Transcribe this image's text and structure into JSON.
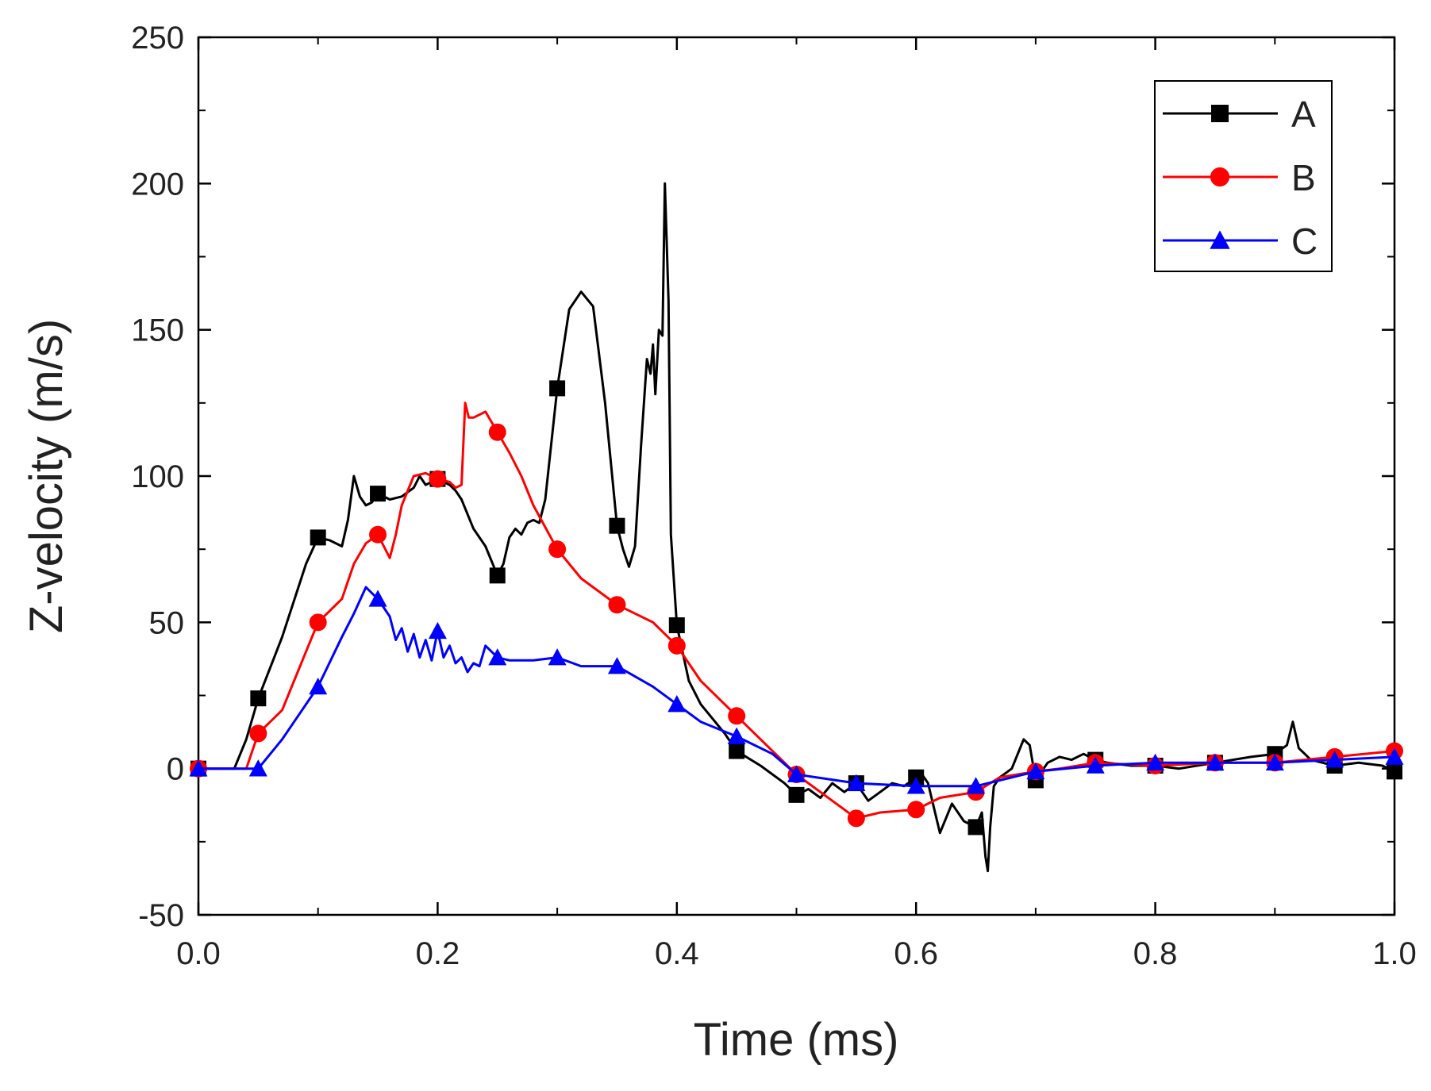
{
  "chart_data": {
    "type": "line",
    "title": "",
    "xlabel": "Time (ms)",
    "ylabel": "Z-velocity (m/s)",
    "xlim": [
      0.0,
      1.0
    ],
    "ylim": [
      -50,
      250
    ],
    "grid": false,
    "legend_position": "top-right",
    "x_ticks": [
      0.0,
      0.2,
      0.4,
      0.6,
      0.8,
      1.0
    ],
    "x_tick_labels": [
      "0.0",
      "0.2",
      "0.4",
      "0.6",
      "0.8",
      "1.0"
    ],
    "y_ticks": [
      -50,
      0,
      50,
      100,
      150,
      200,
      250
    ],
    "y_tick_labels": [
      "-50",
      "0",
      "50",
      "100",
      "150",
      "200",
      "250"
    ],
    "marker_x": [
      0.0,
      0.05,
      0.1,
      0.15,
      0.2,
      0.25,
      0.3,
      0.35,
      0.4,
      0.45,
      0.5,
      0.55,
      0.6,
      0.65,
      0.7,
      0.75,
      0.8,
      0.85,
      0.9,
      0.95,
      1.0
    ],
    "series": [
      {
        "name": "A",
        "color": "#000000",
        "marker": "square",
        "x": [
          0.0,
          0.03,
          0.04,
          0.05,
          0.07,
          0.09,
          0.1,
          0.11,
          0.12,
          0.125,
          0.13,
          0.135,
          0.14,
          0.145,
          0.15,
          0.16,
          0.17,
          0.18,
          0.185,
          0.19,
          0.2,
          0.21,
          0.215,
          0.22,
          0.23,
          0.24,
          0.25,
          0.255,
          0.26,
          0.265,
          0.27,
          0.275,
          0.28,
          0.285,
          0.29,
          0.3,
          0.31,
          0.32,
          0.33,
          0.34,
          0.35,
          0.355,
          0.36,
          0.365,
          0.37,
          0.375,
          0.378,
          0.38,
          0.382,
          0.385,
          0.388,
          0.39,
          0.393,
          0.395,
          0.4,
          0.41,
          0.42,
          0.44,
          0.45,
          0.47,
          0.49,
          0.5,
          0.51,
          0.52,
          0.53,
          0.54,
          0.55,
          0.56,
          0.57,
          0.58,
          0.59,
          0.6,
          0.605,
          0.61,
          0.62,
          0.63,
          0.64,
          0.65,
          0.655,
          0.658,
          0.66,
          0.662,
          0.665,
          0.67,
          0.68,
          0.685,
          0.69,
          0.695,
          0.7,
          0.71,
          0.72,
          0.73,
          0.74,
          0.75,
          0.76,
          0.78,
          0.8,
          0.82,
          0.85,
          0.88,
          0.9,
          0.91,
          0.915,
          0.92,
          0.925,
          0.93,
          0.95,
          0.97,
          0.99,
          1.0
        ],
        "y": [
          0,
          0,
          10,
          24,
          45,
          70,
          79,
          78,
          76,
          85,
          100,
          93,
          90,
          91,
          94,
          92,
          93,
          96,
          100,
          97,
          99,
          97,
          95,
          92,
          82,
          76,
          66,
          70,
          79,
          82,
          80,
          84,
          85,
          84,
          92,
          130,
          157,
          163,
          158,
          125,
          83,
          75,
          69,
          76,
          110,
          140,
          135,
          145,
          128,
          150,
          148,
          200,
          160,
          80,
          49,
          30,
          22,
          12,
          6,
          1,
          -5,
          -9,
          -7,
          -10,
          -5,
          -8,
          -5,
          -11,
          -8,
          -5,
          -6,
          -3,
          -2,
          -5,
          -22,
          -12,
          -18,
          -20,
          -15,
          -30,
          -35,
          -20,
          -6,
          -3,
          0,
          5,
          10,
          8,
          -4,
          2,
          4,
          3,
          5,
          3,
          2,
          1,
          1,
          0,
          2,
          4,
          5,
          8,
          16,
          7,
          5,
          3,
          1,
          2,
          1,
          -1
        ]
      },
      {
        "name": "B",
        "color": "#ff0000",
        "marker": "circle",
        "x": [
          0.0,
          0.04,
          0.05,
          0.07,
          0.09,
          0.1,
          0.12,
          0.13,
          0.14,
          0.15,
          0.155,
          0.16,
          0.165,
          0.17,
          0.18,
          0.19,
          0.2,
          0.21,
          0.215,
          0.22,
          0.223,
          0.226,
          0.23,
          0.24,
          0.25,
          0.26,
          0.27,
          0.28,
          0.3,
          0.32,
          0.35,
          0.38,
          0.4,
          0.42,
          0.45,
          0.47,
          0.5,
          0.52,
          0.55,
          0.57,
          0.6,
          0.62,
          0.65,
          0.67,
          0.7,
          0.72,
          0.75,
          0.8,
          0.85,
          0.9,
          0.95,
          1.0
        ],
        "y": [
          0,
          0,
          12,
          20,
          40,
          50,
          58,
          70,
          77,
          80,
          76,
          72,
          80,
          90,
          100,
          101,
          99,
          98,
          96,
          97,
          125,
          120,
          120,
          122,
          115,
          108,
          100,
          90,
          75,
          65,
          56,
          50,
          42,
          30,
          18,
          10,
          -2,
          -8,
          -17,
          -15,
          -14,
          -10,
          -8,
          -3,
          -1,
          0,
          2,
          1,
          2,
          2,
          4,
          6
        ]
      },
      {
        "name": "C",
        "color": "#0000ff",
        "marker": "triangle",
        "x": [
          0.0,
          0.05,
          0.07,
          0.09,
          0.1,
          0.12,
          0.13,
          0.14,
          0.15,
          0.155,
          0.16,
          0.165,
          0.17,
          0.175,
          0.18,
          0.185,
          0.19,
          0.195,
          0.2,
          0.205,
          0.21,
          0.215,
          0.22,
          0.225,
          0.23,
          0.235,
          0.24,
          0.25,
          0.26,
          0.28,
          0.3,
          0.32,
          0.35,
          0.38,
          0.4,
          0.42,
          0.45,
          0.48,
          0.5,
          0.55,
          0.6,
          0.65,
          0.7,
          0.75,
          0.8,
          0.85,
          0.9,
          0.95,
          1.0
        ],
        "y": [
          0,
          0,
          10,
          22,
          28,
          45,
          53,
          62,
          58,
          55,
          52,
          44,
          48,
          40,
          46,
          38,
          44,
          37,
          47,
          38,
          42,
          36,
          38,
          33,
          36,
          35,
          42,
          38,
          37,
          37,
          38,
          35,
          35,
          28,
          22,
          16,
          11,
          5,
          -2,
          -5,
          -6,
          -6,
          -1,
          1,
          2,
          2,
          2,
          3,
          4
        ]
      }
    ]
  }
}
